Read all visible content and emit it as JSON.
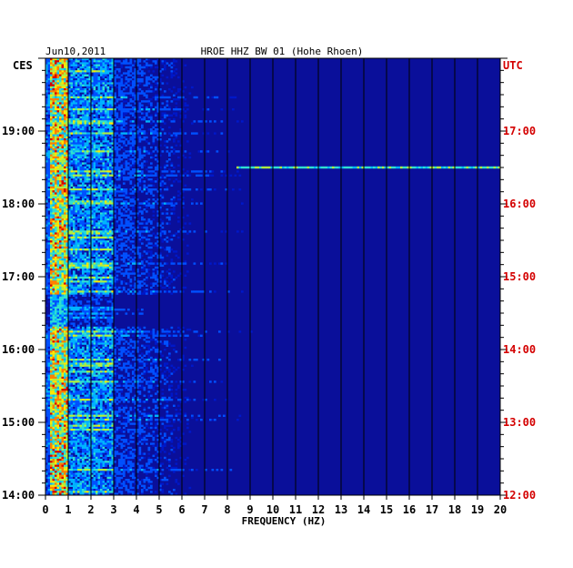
{
  "chart_data": {
    "type": "heatmap",
    "title": "HROE HHZ BW 01 (Hohe Rhoen)",
    "date": "Jun10,2011",
    "xlabel": "FREQUENCY (HZ)",
    "xlim": [
      0,
      20
    ],
    "x_ticks": [
      "0",
      "1",
      "2",
      "3",
      "4",
      "5",
      "6",
      "7",
      "8",
      "9",
      "10",
      "11",
      "12",
      "13",
      "14",
      "15",
      "16",
      "17",
      "18",
      "19",
      "20"
    ],
    "left_axis": {
      "label": "CES",
      "ticks": [
        "19:00",
        "18:00",
        "17:00",
        "16:00",
        "15:00",
        "14:00"
      ],
      "tick_hours": [
        19,
        18,
        17,
        16,
        15,
        14
      ],
      "range_hours": [
        14,
        20
      ]
    },
    "right_axis": {
      "label": "UTC",
      "ticks": [
        "17:00",
        "16:00",
        "15:00",
        "14:00",
        "13:00",
        "12:00"
      ],
      "tick_hours": [
        17,
        16,
        15,
        14,
        13,
        12
      ],
      "color": "#d40000"
    },
    "grid": true,
    "colormap": [
      "#00006e",
      "#0018c8",
      "#0050ff",
      "#00b4ff",
      "#30e0d0",
      "#b0f040",
      "#ffe800",
      "#ff8000",
      "#d80000"
    ],
    "features": {
      "low_freq_band_hz": [
        0.2,
        1.0
      ],
      "secondary_band_hz": [
        1.0,
        3.0
      ],
      "horizontal_line_hour": 18.5,
      "horizontal_line_range_hz": [
        8.4,
        20
      ],
      "dark_gap_hours": [
        16.3,
        16.75
      ]
    }
  }
}
